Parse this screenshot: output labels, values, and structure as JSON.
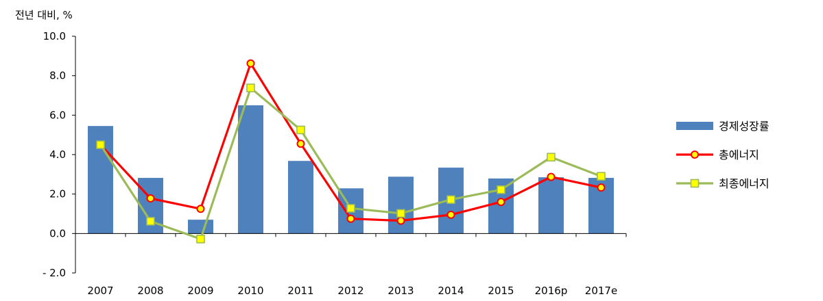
{
  "chart_data": {
    "type": "bar",
    "title": "",
    "ylabel": "전년 대비, %",
    "xlabel": "",
    "ylim": [
      -2.0,
      10.0
    ],
    "ytick_step": 2.0,
    "ytick_labels": [
      "- 2.0",
      "0.0",
      "2.0",
      "4.0",
      "6.0",
      "8.0",
      "10.0"
    ],
    "grid": false,
    "legend_position": "right",
    "categories": [
      "2007",
      "2008",
      "2009",
      "2010",
      "2011",
      "2012",
      "2013",
      "2014",
      "2015",
      "2016p",
      "2017e"
    ],
    "series": [
      {
        "name": "경제성장률",
        "type": "bar",
        "color": "#4F81BD",
        "values": [
          5.45,
          2.82,
          0.7,
          6.5,
          3.68,
          2.29,
          2.88,
          3.34,
          2.79,
          2.85,
          2.82
        ]
      },
      {
        "name": "총에너지",
        "type": "line",
        "color": "#FF0000",
        "marker": "circle",
        "marker_fill": "#FFFF00",
        "values": [
          4.5,
          1.78,
          1.25,
          8.62,
          4.55,
          0.75,
          0.65,
          0.95,
          1.6,
          2.87,
          2.33
        ]
      },
      {
        "name": "최종에너지",
        "type": "line",
        "color": "#9BBB59",
        "marker": "square",
        "marker_fill": "#FFFF00",
        "values": [
          4.5,
          0.62,
          -0.28,
          7.38,
          5.25,
          1.28,
          1.02,
          1.72,
          2.22,
          3.87,
          2.9
        ]
      }
    ]
  }
}
